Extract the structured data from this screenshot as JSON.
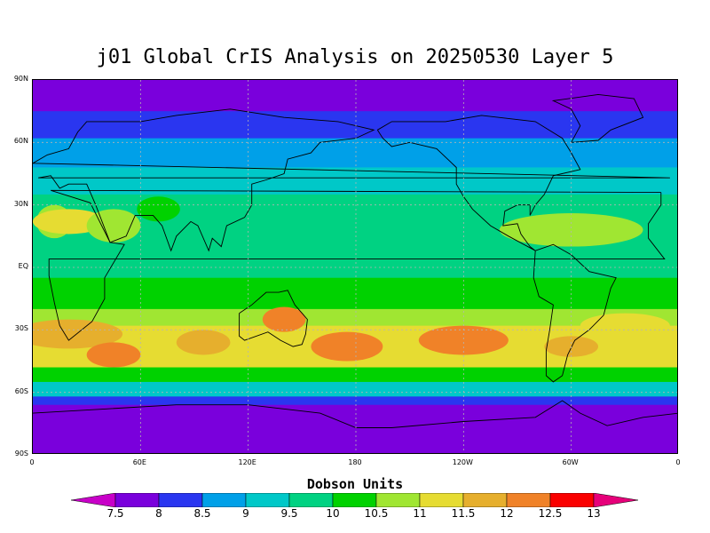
{
  "title": "j01 Global CrIS Analysis on 20250530 Layer 5",
  "units_label": "Dobson Units",
  "lat_ticks": [
    "90N",
    "60N",
    "30N",
    "EQ",
    "30S",
    "60S",
    "90S"
  ],
  "lon_ticks": [
    "0",
    "60E",
    "120E",
    "180",
    "120W",
    "60W",
    "0"
  ],
  "colorbar": {
    "labels": [
      "7.5",
      "8",
      "8.5",
      "9",
      "9.5",
      "10",
      "10.5",
      "11",
      "11.5",
      "12",
      "12.5",
      "13"
    ],
    "colors": [
      "#c800c8",
      "#7a00dc",
      "#2a36f0",
      "#00a0e8",
      "#00c8c8",
      "#00d282",
      "#00d200",
      "#a0e632",
      "#e6dc32",
      "#e6af2d",
      "#f08228",
      "#fa0000",
      "#e6007a"
    ]
  },
  "chart_data": {
    "type": "heatmap",
    "title": "j01 Global CrIS Analysis on 20250530 Layer 5",
    "colorbar_label": "Dobson Units",
    "colorbar_levels": [
      7.5,
      8,
      8.5,
      9,
      9.5,
      10,
      10.5,
      11,
      11.5,
      12,
      12.5,
      13
    ],
    "x_range_lon": [
      0,
      360
    ],
    "y_range_lat": [
      -90,
      90
    ],
    "grid": true,
    "zonal_bands": [
      {
        "lat_from": 90,
        "lat_to": 75,
        "value": 7.8
      },
      {
        "lat_from": 75,
        "lat_to": 62,
        "value": 8.3
      },
      {
        "lat_from": 62,
        "lat_to": 48,
        "value": 8.8
      },
      {
        "lat_from": 48,
        "lat_to": 35,
        "value": 9.3
      },
      {
        "lat_from": 35,
        "lat_to": 15,
        "value": 9.7
      },
      {
        "lat_from": 15,
        "lat_to": -5,
        "value": 9.9
      },
      {
        "lat_from": -5,
        "lat_to": -20,
        "value": 10.3
      },
      {
        "lat_from": -20,
        "lat_to": -28,
        "value": 10.8
      },
      {
        "lat_from": -28,
        "lat_to": -48,
        "value": 11.2
      },
      {
        "lat_from": -48,
        "lat_to": -55,
        "value": 10.3
      },
      {
        "lat_from": -55,
        "lat_to": -62,
        "value": 9.3
      },
      {
        "lat_from": -62,
        "lat_to": -66,
        "value": 8.3
      },
      {
        "lat_from": -66,
        "lat_to": -90,
        "value": 7.8
      }
    ],
    "blobs": [
      {
        "lon": 12,
        "lat": 22,
        "rlon": 10,
        "rlat": 8,
        "value": 10.8
      },
      {
        "lon": 20,
        "lat": 22,
        "rlon": 20,
        "rlat": 6,
        "value": 11.2
      },
      {
        "lon": 45,
        "lat": 20,
        "rlon": 15,
        "rlat": 8,
        "value": 10.7
      },
      {
        "lon": 70,
        "lat": 28,
        "rlon": 12,
        "rlat": 6,
        "value": 10.2
      },
      {
        "lon": 300,
        "lat": 18,
        "rlon": 40,
        "rlat": 8,
        "value": 10.8
      },
      {
        "lon": 20,
        "lat": -32,
        "rlon": 30,
        "rlat": 7,
        "value": 11.5
      },
      {
        "lon": 45,
        "lat": -42,
        "rlon": 15,
        "rlat": 6,
        "value": 12.0
      },
      {
        "lon": 95,
        "lat": -36,
        "rlon": 15,
        "rlat": 6,
        "value": 11.8
      },
      {
        "lon": 140,
        "lat": -25,
        "rlon": 12,
        "rlat": 6,
        "value": 12.3
      },
      {
        "lon": 175,
        "lat": -38,
        "rlon": 20,
        "rlat": 7,
        "value": 12.0
      },
      {
        "lon": 240,
        "lat": -35,
        "rlon": 25,
        "rlat": 7,
        "value": 12.2
      },
      {
        "lon": 300,
        "lat": -38,
        "rlon": 15,
        "rlat": 5,
        "value": 11.6
      },
      {
        "lon": 330,
        "lat": -28,
        "rlon": 25,
        "rlat": 6,
        "value": 11.0
      }
    ]
  }
}
